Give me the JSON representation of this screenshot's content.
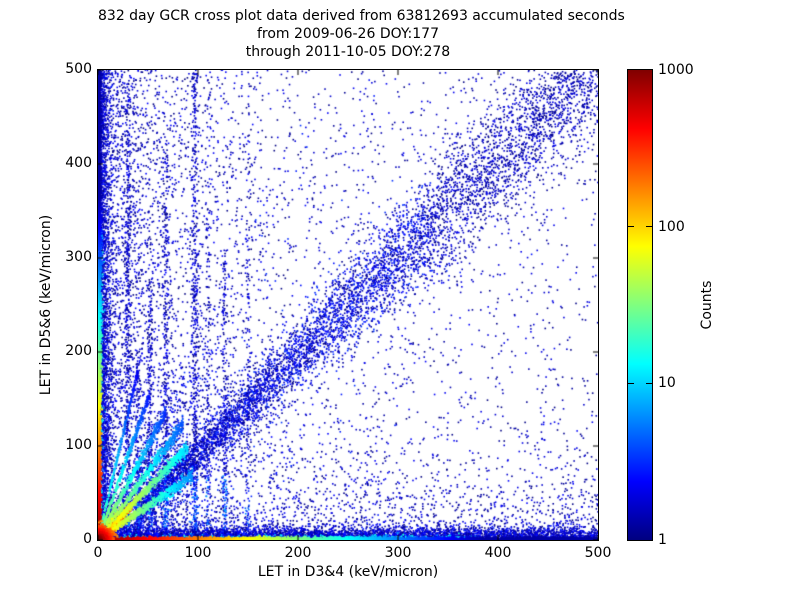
{
  "figure": {
    "title_lines": [
      "832 day GCR cross plot data derived from 63812693 accumulated seconds",
      "from 2009-06-26 DOY:177",
      "through 2011-10-05 DOY:278"
    ],
    "background": "#ffffff"
  },
  "chart_data": {
    "type": "heatmap",
    "subtype": "2d-histogram-cross-plot",
    "title": "832 day GCR cross plot data derived from 63812693 accumulated seconds",
    "subtitle1": "from 2009-06-26 DOY:177",
    "subtitle2": "through 2011-10-05 DOY:278",
    "xlabel": "LET in D3&4 (keV/micron)",
    "ylabel": "LET in D5&6 (keV/micron)",
    "xlim": [
      0,
      500
    ],
    "ylim": [
      0,
      500
    ],
    "xticks": [
      0,
      100,
      200,
      300,
      400,
      500
    ],
    "yticks": [
      0,
      100,
      200,
      300,
      400,
      500
    ],
    "grid": false,
    "background_color": "#ffffff",
    "colorbar": {
      "label": "Counts",
      "scale": "log",
      "min": 1,
      "max": 1000,
      "ticks": [
        1,
        10,
        100,
        1000
      ],
      "colormap": "jet",
      "gradient": [
        [
          "0%",
          "#000080"
        ],
        [
          "12.5%",
          "#0000ff"
        ],
        [
          "37.5%",
          "#00ffff"
        ],
        [
          "62.5%",
          "#ffff00"
        ],
        [
          "87.5%",
          "#ff0000"
        ],
        [
          "100%",
          "#800000"
        ]
      ]
    },
    "features": [
      {
        "kind": "uniform",
        "name": "background-scatter",
        "n": 1800,
        "xr": [
          0,
          500
        ],
        "yr": [
          0,
          500
        ],
        "c": [
          1,
          2.2
        ],
        "s": 1.6
      },
      {
        "kind": "expx",
        "name": "left-half-scatter",
        "n": 3000,
        "scale": 55,
        "yr": [
          0,
          500
        ],
        "c": [
          1,
          2.5
        ],
        "s": 1.6
      },
      {
        "kind": "expy",
        "name": "low-y-scatter",
        "n": 1600,
        "scale": 38,
        "xr": [
          0,
          500
        ],
        "c": [
          1,
          2.5
        ],
        "s": 1.6
      },
      {
        "kind": "wedge",
        "name": "origin-fan-fill",
        "n": 1500,
        "scale": 85,
        "m": [
          0.25,
          2.2
        ],
        "sd": 6,
        "c": [
          1,
          3.5
        ],
        "s": 1.6
      },
      {
        "kind": "band",
        "name": "main-diagonal-band",
        "n": 4200,
        "t": [
          40,
          335
        ],
        "slope": 1.04,
        "intercept": -12,
        "sd0": 4,
        "sdGrow": 0.07,
        "c": [
          1,
          3.5
        ],
        "s": 1.6
      },
      {
        "kind": "band",
        "name": "upper-diagonal-cloud",
        "n": 2100,
        "t": [
          330,
          500
        ],
        "slope": 1.04,
        "intercept": -12,
        "sd0": 32,
        "sdGrow": 0,
        "c": [
          1,
          2.2
        ],
        "s": 1.6
      },
      {
        "kind": "vstreak",
        "x": 30,
        "n": 500,
        "yTop": 480,
        "sd": 1.6
      },
      {
        "kind": "vstreak",
        "x": 40,
        "n": 200,
        "yTop": 200,
        "sd": 1.4
      },
      {
        "kind": "vstreak",
        "x": 52,
        "n": 260,
        "yTop": 270,
        "sd": 1.5
      },
      {
        "kind": "vstreak",
        "x": 68,
        "n": 380,
        "yTop": 420,
        "sd": 1.6
      },
      {
        "kind": "vstreak",
        "x": 97,
        "n": 520,
        "yTop": 500,
        "sd": 1.8
      },
      {
        "kind": "vstreak",
        "x": 110,
        "n": 160,
        "yTop": 500,
        "sd": 1.5
      },
      {
        "kind": "vstreak",
        "x": 127,
        "n": 220,
        "yTop": 300,
        "sd": 1.5
      },
      {
        "kind": "vstreak",
        "x": 150,
        "n": 140,
        "yTop": 500,
        "sd": 1.5
      },
      {
        "kind": "hdense",
        "name": "bottom-blue-band",
        "n": 5600,
        "ysd": 6.5,
        "xr": [
          0,
          500
        ],
        "taper": 0.35,
        "c": [
          1,
          3
        ],
        "s": 1.6
      },
      {
        "kind": "hdense",
        "name": "bottom-cyan-speckle",
        "n": 520,
        "ysd": 2.2,
        "xr": [
          0,
          380
        ],
        "taper": 0,
        "c": [
          5,
          20
        ],
        "s": 1.6
      },
      {
        "kind": "vdense",
        "name": "left-blue-column",
        "n": 4200,
        "xsd": 6,
        "yr": [
          0,
          500
        ],
        "taper": 0.55,
        "c": [
          1,
          3
        ],
        "s": 1.6
      },
      {
        "kind": "vdense",
        "name": "left-cyan-speckle",
        "n": 420,
        "xsd": 2.2,
        "yr": [
          0,
          330
        ],
        "taper": 0,
        "c": [
          5,
          20
        ],
        "s": 1.6
      },
      {
        "kind": "edgeH",
        "name": "hot-bottom-edge",
        "n": 2500,
        "scale": 58,
        "cmax": 1000,
        "sd": 1.4,
        "s": 2
      },
      {
        "kind": "edgeV",
        "name": "hot-left-edge",
        "n": 2500,
        "scale": 55,
        "cmax": 1000,
        "sd": 1.4,
        "s": 2
      },
      {
        "kind": "ray",
        "name": "diagonal-hot-core",
        "m": 1.07,
        "len": 34,
        "sd": 1.3,
        "cNear": 950,
        "cFar": 150,
        "n": 700,
        "s": 2
      },
      {
        "kind": "ray",
        "name": "diagonal-warm-tail",
        "m": 1.1,
        "len": 90,
        "sd": 2.2,
        "cNear": 140,
        "cFar": 10,
        "n": 750,
        "s": 1.8
      },
      {
        "kind": "ray",
        "name": "fan-below-diagonal",
        "m": 0.72,
        "len": 95,
        "sd": 2.4,
        "cNear": 120,
        "cFar": 6,
        "n": 700,
        "s": 1.8
      },
      {
        "kind": "ray",
        "name": "fan-1",
        "m": 1.45,
        "len": 85,
        "sd": 2.6,
        "cNear": 90,
        "cFar": 4,
        "n": 600,
        "s": 1.8
      },
      {
        "kind": "ray",
        "name": "fan-2",
        "m": 2.0,
        "len": 68,
        "sd": 2.4,
        "cNear": 70,
        "cFar": 3,
        "n": 480,
        "s": 1.8
      },
      {
        "kind": "ray",
        "name": "fan-3",
        "m": 3.0,
        "len": 52,
        "sd": 2.2,
        "cNear": 50,
        "cFar": 2.5,
        "n": 380,
        "s": 1.8
      },
      {
        "kind": "ray",
        "name": "fan-4",
        "m": 4.5,
        "len": 40,
        "sd": 2.0,
        "cNear": 30,
        "cFar": 2,
        "n": 280,
        "s": 1.8
      },
      {
        "kind": "blob",
        "name": "origin-hot-blob",
        "n": 1400,
        "rsd": 7,
        "rscale": 9,
        "cmax": 1400,
        "s": 2
      }
    ]
  }
}
